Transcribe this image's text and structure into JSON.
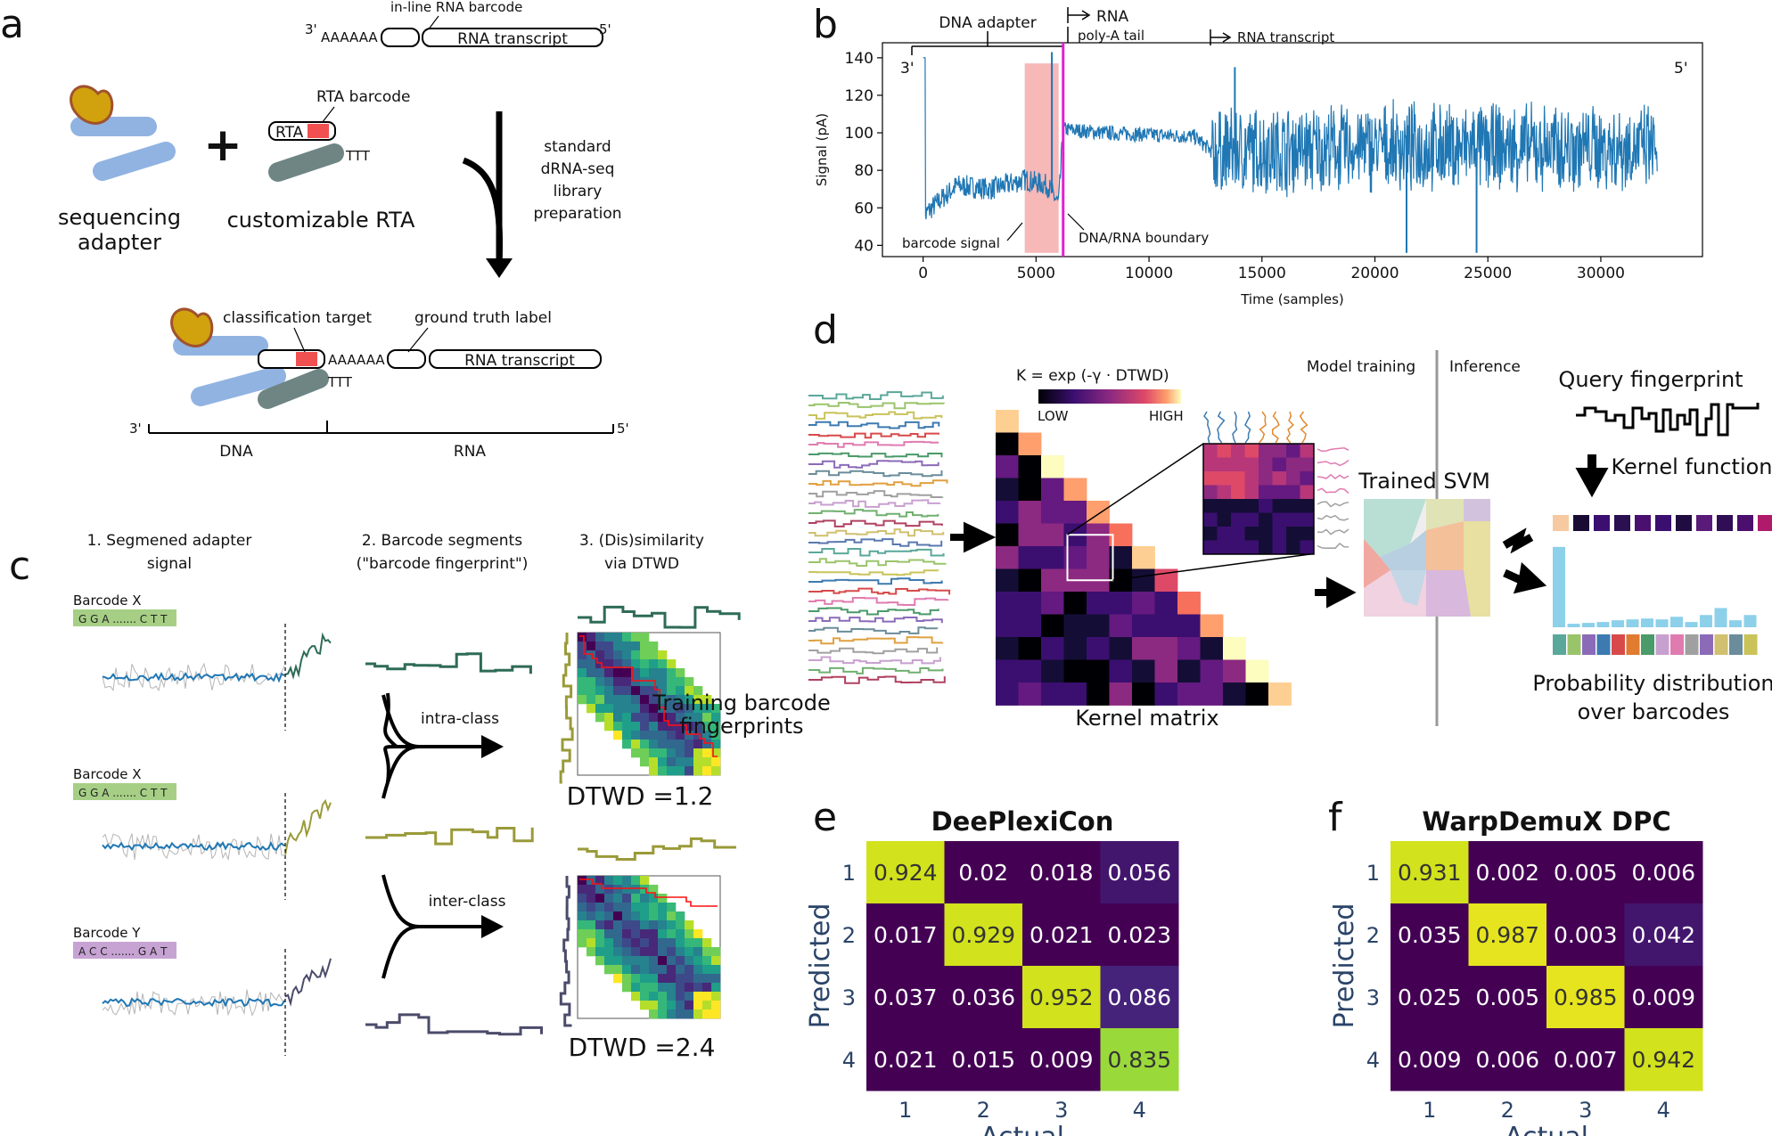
{
  "panels": {
    "a": "a",
    "b": "b",
    "c": "c",
    "d": "d",
    "e": "e",
    "f": "f"
  },
  "panel_a": {
    "inline_barcode": "in-line RNA barcode",
    "three_prime": "3'",
    "five_prime": "5'",
    "polyA": "AAAAAA",
    "rna_transcript": "RNA transcript",
    "rta_barcode": "RTA barcode",
    "rta": "RTA",
    "ttt": "TTT",
    "plus": "+",
    "seq_adapter_1": "sequencing",
    "seq_adapter_2": "adapter",
    "custom_rta": "customizable RTA",
    "prep_1": "standard",
    "prep_2": "dRNA-seq",
    "prep_3": "library",
    "prep_4": "preparation",
    "classification_target": "classification target",
    "ground_truth": "ground truth label",
    "dna": "DNA",
    "rna": "RNA"
  },
  "panel_b": {
    "dna_adapter": "DNA adapter",
    "rna": "RNA",
    "polya_tail": "poly-A tail",
    "rna_transcript": "RNA transcript",
    "three_prime": "3'",
    "five_prime": "5'",
    "barcode_signal": "barcode signal",
    "boundary": "DNA/RNA boundary",
    "colors": {
      "signal": "#1f77b4",
      "highlight": "#f4a0a0",
      "boundary": "#e020d0"
    }
  },
  "chart_data": [
    {
      "type": "line",
      "title": "",
      "xlabel": "Time (samples)",
      "ylabel": "Signal (pA)",
      "xlim": [
        -1800,
        34500
      ],
      "ylim": [
        34,
        148
      ],
      "xticks": [
        0,
        5000,
        10000,
        15000,
        20000,
        25000,
        30000
      ],
      "yticks": [
        40,
        60,
        80,
        100,
        120,
        140
      ],
      "annotations": {
        "barcode_region": [
          4500,
          6000
        ],
        "dna_rna_boundary": 6200
      },
      "series": [
        {
          "name": "signal",
          "x": [
            0,
            200,
            1500,
            3000,
            4500,
            5500,
            6000,
            6200,
            8000,
            12000,
            12800,
            20000,
            32500
          ],
          "y": [
            52,
            58,
            72,
            70,
            75,
            72,
            62,
            102,
            100,
            98,
            90,
            92,
            92
          ]
        }
      ]
    },
    {
      "type": "heatmap",
      "title": "DeePlexiCon",
      "xlabel": "Actual",
      "ylabel": "Predicted",
      "x_categories": [
        "1",
        "2",
        "3",
        "4"
      ],
      "y_categories": [
        "1",
        "2",
        "3",
        "4"
      ],
      "values": [
        [
          "0.924",
          "0.02",
          "0.018",
          "0.056"
        ],
        [
          "0.017",
          "0.929",
          "0.021",
          "0.023"
        ],
        [
          "0.037",
          "0.036",
          "0.952",
          "0.086"
        ],
        [
          "0.021",
          "0.015",
          "0.009",
          "0.835"
        ]
      ]
    },
    {
      "type": "heatmap",
      "title": "WarpDemuX DPC",
      "xlabel": "Actual",
      "ylabel": "Predicted",
      "x_categories": [
        "1",
        "2",
        "3",
        "4"
      ],
      "y_categories": [
        "1",
        "2",
        "3",
        "4"
      ],
      "values": [
        [
          "0.931",
          "0.002",
          "0.005",
          "0.006"
        ],
        [
          "0.035",
          "0.987",
          "0.003",
          "0.042"
        ],
        [
          "0.025",
          "0.005",
          "0.985",
          "0.009"
        ],
        [
          "0.009",
          "0.006",
          "0.007",
          "0.942"
        ]
      ]
    }
  ],
  "panel_c": {
    "step1_l1": "1. Segmened adapter",
    "step1_l2": "signal",
    "step2_l1": "2. Barcode segments",
    "step2_l2": "(\"barcode fingerprint\")",
    "step3_l1": "3. (Dis)similarity",
    "step3_l2": "via DTWD",
    "barcodes": [
      {
        "name": "Barcode X",
        "seq": "G G A ....... C T T",
        "color": "#a6cf85"
      },
      {
        "name": "Barcode X",
        "seq": "G G A ....... C T T",
        "color": "#a6cf85"
      },
      {
        "name": "Barcode Y",
        "seq": "A C C ....... G A T",
        "color": "#c7a3d4"
      }
    ],
    "intra": "intra-class",
    "inter": "inter-class",
    "dtwd1": "DTWD =1.2",
    "dtwd2": "DTWD =2.4"
  },
  "panel_d": {
    "kernel_formula": "K = exp (-γ · DTWD)",
    "low": "LOW",
    "high": "HIGH",
    "training_l1": "Training barcode",
    "training_l2": "fingerprints",
    "kernel_matrix": "Kernel matrix",
    "model_training": "Model training",
    "inference": "Inference",
    "trained_svm": "Trained SVM",
    "query": "Query fingerprint",
    "kernel_function": "Kernel function",
    "prob_l1": "Probability distribution",
    "prob_l2": "over barcodes"
  }
}
